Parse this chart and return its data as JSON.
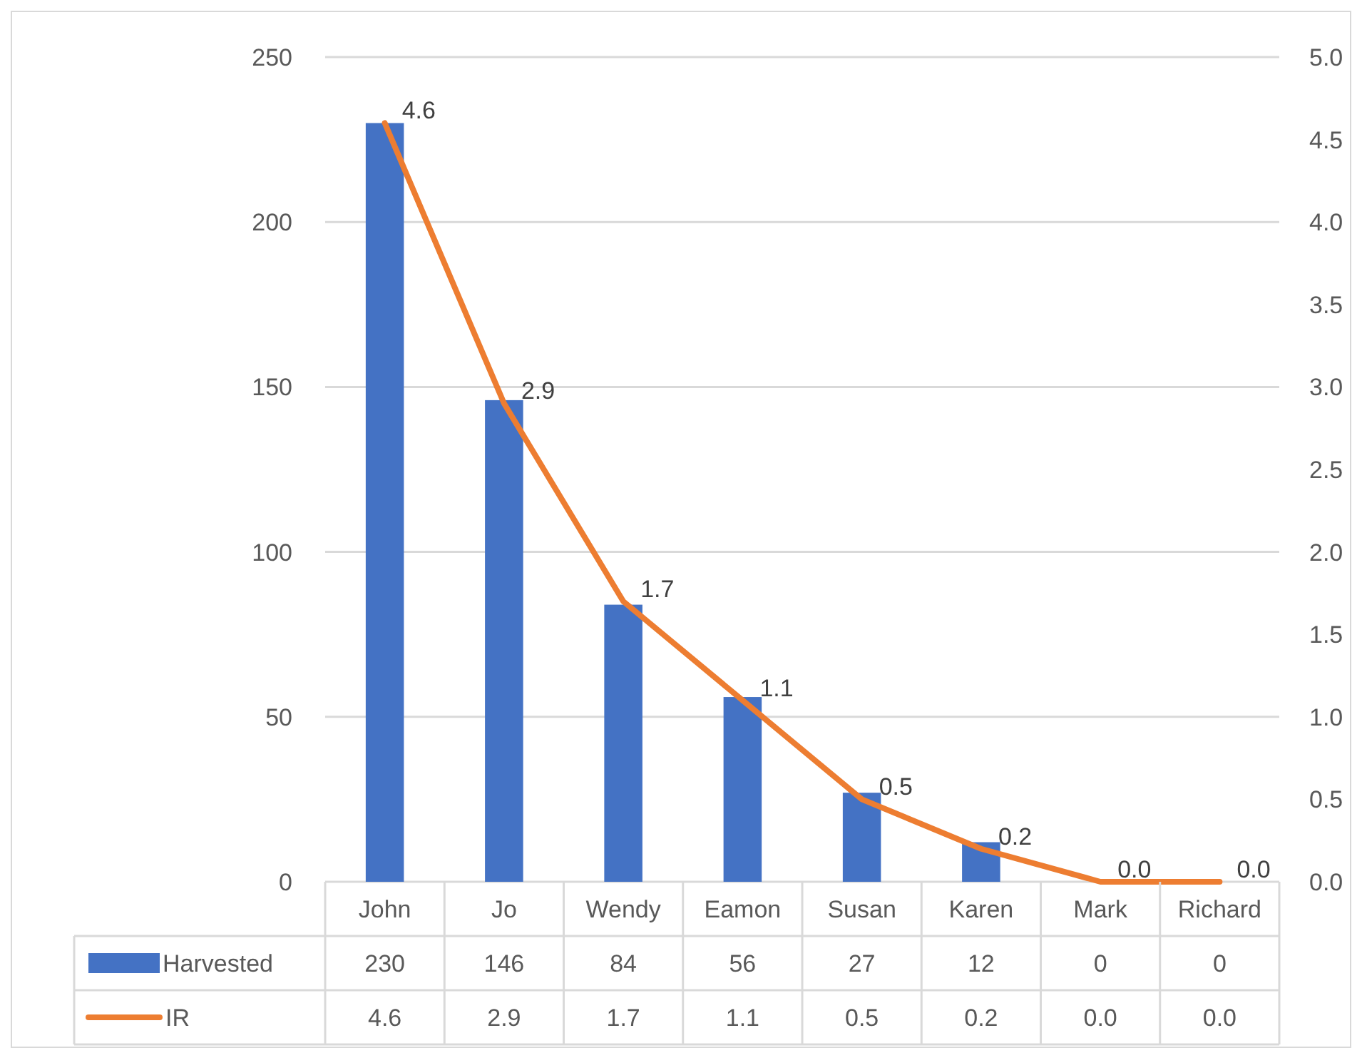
{
  "chart_data": {
    "type": "bar",
    "categories": [
      "John",
      "Jo",
      "Wendy",
      "Eamon",
      "Susan",
      "Karen",
      "Mark",
      "Richard"
    ],
    "series": [
      {
        "name": "Harvested",
        "color": "#4472c4",
        "values": [
          230,
          146,
          84,
          56,
          27,
          12,
          0,
          0
        ]
      },
      {
        "name": "IR",
        "type": "line",
        "axis": "y2",
        "color": "#ed7d31",
        "values": [
          4.6,
          2.9,
          1.7,
          1.1,
          0.5,
          0.2,
          0,
          0
        ],
        "value_labels": [
          "4.6",
          "2.9",
          "1.7",
          "1.1",
          "0.5",
          "0.2",
          "0.0",
          "0.0"
        ]
      }
    ],
    "ylim": [
      0,
      250
    ],
    "yticks": [
      0,
      50,
      100,
      150,
      200,
      250
    ],
    "y2lim": [
      0,
      5
    ],
    "y2ticks": [
      {
        "value": 0,
        "label": "0.0"
      },
      {
        "value": 0.5,
        "label": "0.5"
      },
      {
        "value": 1,
        "label": "1.0"
      },
      {
        "value": 1.5,
        "label": "1.5"
      },
      {
        "value": 2,
        "label": "2.0"
      },
      {
        "value": 2.5,
        "label": "2.5"
      },
      {
        "value": 3,
        "label": "3.0"
      },
      {
        "value": 3.5,
        "label": "3.5"
      },
      {
        "value": 4,
        "label": "4.0"
      },
      {
        "value": 4.5,
        "label": "4.5"
      },
      {
        "value": 5,
        "label": "5.0"
      }
    ],
    "grid": "y",
    "legend": "bottom",
    "data_labels": true,
    "marker": "none",
    "line_style": "solid"
  }
}
